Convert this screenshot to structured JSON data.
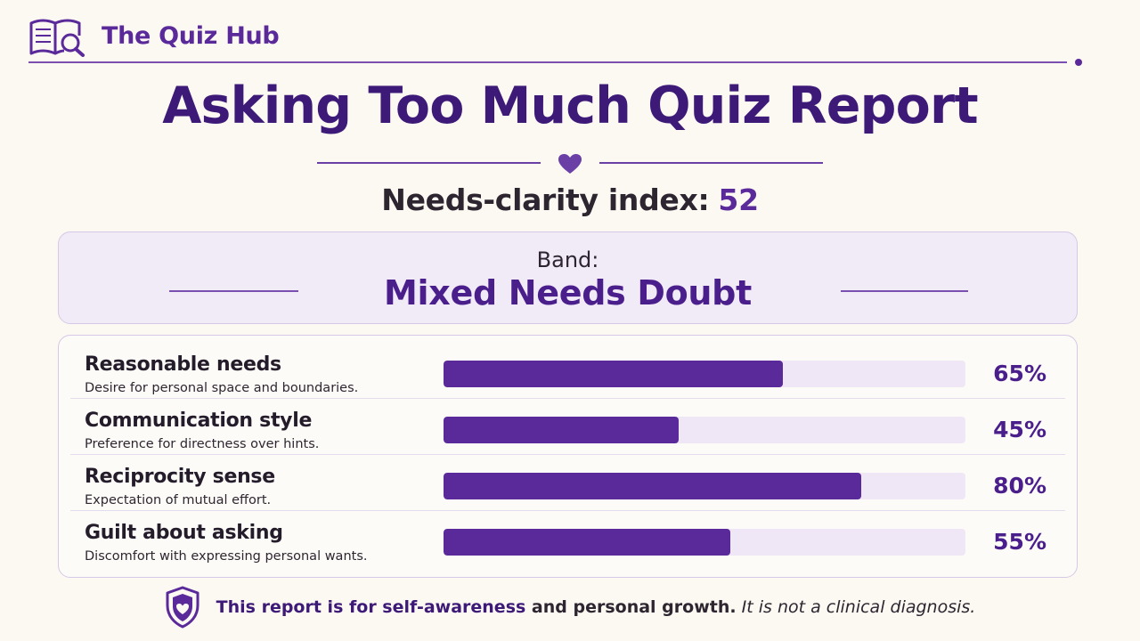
{
  "brand": {
    "name": "The Quiz Hub",
    "icon": "book-magnifier-icon"
  },
  "report": {
    "title": "Asking Too Much Quiz Report",
    "divider_icon": "heart-icon",
    "index_label": "Needs-clarity index:",
    "index_value": "52",
    "band_label": "Band:",
    "band_value": "Mixed Needs Doubt"
  },
  "metrics": [
    {
      "name": "Reasonable needs",
      "description": "Desire for personal space and boundaries.",
      "percent": 65,
      "percent_label": "65%"
    },
    {
      "name": "Communication style",
      "description": "Preference for directness over hints.",
      "percent": 45,
      "percent_label": "45%"
    },
    {
      "name": "Reciprocity sense",
      "description": "Expectation of mutual effort.",
      "percent": 80,
      "percent_label": "80%"
    },
    {
      "name": "Guilt about asking",
      "description": "Discomfort with expressing personal wants.",
      "percent": 55,
      "percent_label": "55%"
    }
  ],
  "footer": {
    "icon": "shield-heart-icon",
    "part1": "This report is for self-awareness",
    "part2": " and personal growth.",
    "part3": " It is not a clinical diagnosis."
  },
  "colors": {
    "accent": "#5b2a9a",
    "title": "#3e1a78",
    "background": "#fcf8f2",
    "track": "#efe7f6"
  }
}
